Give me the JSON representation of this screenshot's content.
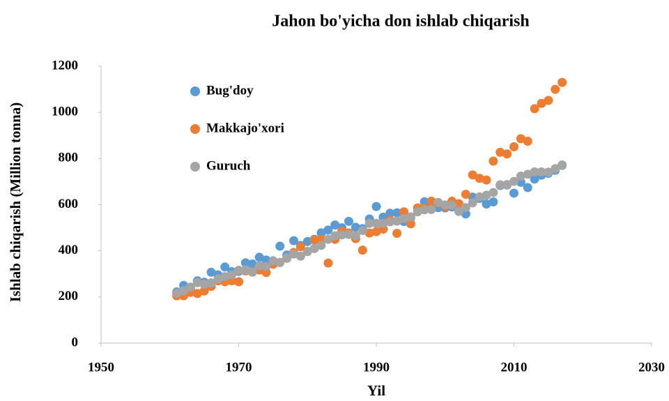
{
  "chart_data": {
    "type": "scatter",
    "title": "Jahon bo'yicha don ishlab chiqarish",
    "xlabel": "Yil",
    "ylabel": "Ishlab chiqarish (Million tonna)",
    "x": [
      1961,
      1962,
      1963,
      1964,
      1965,
      1966,
      1967,
      1968,
      1969,
      1970,
      1971,
      1972,
      1973,
      1974,
      1975,
      1976,
      1977,
      1978,
      1979,
      1980,
      1981,
      1982,
      1983,
      1984,
      1985,
      1986,
      1987,
      1988,
      1989,
      1990,
      1991,
      1992,
      1993,
      1994,
      1995,
      1996,
      1997,
      1998,
      1999,
      2000,
      2001,
      2002,
      2003,
      2004,
      2005,
      2006,
      2007,
      2008,
      2009,
      2010,
      2011,
      2012,
      2013,
      2014,
      2015,
      2016,
      2017
    ],
    "series": [
      {
        "name": "Bug'doy",
        "color": "#5b9bd5",
        "values": [
          222,
          250,
          235,
          270,
          264,
          307,
          296,
          330,
          310,
          311,
          348,
          343,
          372,
          360,
          356,
          420,
          382,
          444,
          423,
          440,
          450,
          478,
          490,
          512,
          500,
          528,
          502,
          496,
          538,
          592,
          546,
          563,
          565,
          527,
          543,
          585,
          613,
          594,
          587,
          586,
          590,
          575,
          560,
          633,
          627,
          603,
          612,
          683,
          687,
          650,
          697,
          674,
          711,
          728,
          736,
          749,
          772
        ]
      },
      {
        "name": "Makkajo'xori",
        "color": "#ed7d31",
        "values": [
          205,
          205,
          220,
          215,
          226,
          246,
          270,
          266,
          270,
          266,
          313,
          308,
          317,
          306,
          342,
          350,
          368,
          393,
          418,
          397,
          447,
          450,
          347,
          450,
          485,
          478,
          453,
          403,
          477,
          483,
          494,
          533,
          476,
          569,
          517,
          586,
          585,
          615,
          607,
          592,
          615,
          604,
          645,
          729,
          714,
          707,
          789,
          827,
          820,
          851,
          886,
          875,
          1016,
          1039,
          1052,
          1100,
          1130
        ]
      },
      {
        "name": "Guruch",
        "color": "#a5a5a5",
        "values": [
          216,
          227,
          243,
          262,
          255,
          261,
          278,
          288,
          296,
          316,
          318,
          308,
          335,
          332,
          357,
          349,
          370,
          386,
          377,
          397,
          410,
          424,
          450,
          465,
          469,
          471,
          465,
          488,
          519,
          519,
          519,
          526,
          529,
          540,
          547,
          569,
          578,
          579,
          610,
          599,
          598,
          571,
          587,
          608,
          634,
          641,
          653,
          686,
          685,
          701,
          724,
          732,
          742,
          742,
          741,
          756,
          770
        ]
      }
    ],
    "xlim": [
      1950,
      2030
    ],
    "xticks": [
      1950,
      1970,
      1990,
      2010,
      2030
    ],
    "ylim": [
      0,
      1200
    ],
    "yticks": [
      0,
      200,
      400,
      600,
      800,
      1000,
      1200
    ],
    "grid": false,
    "legend": "upper left"
  }
}
